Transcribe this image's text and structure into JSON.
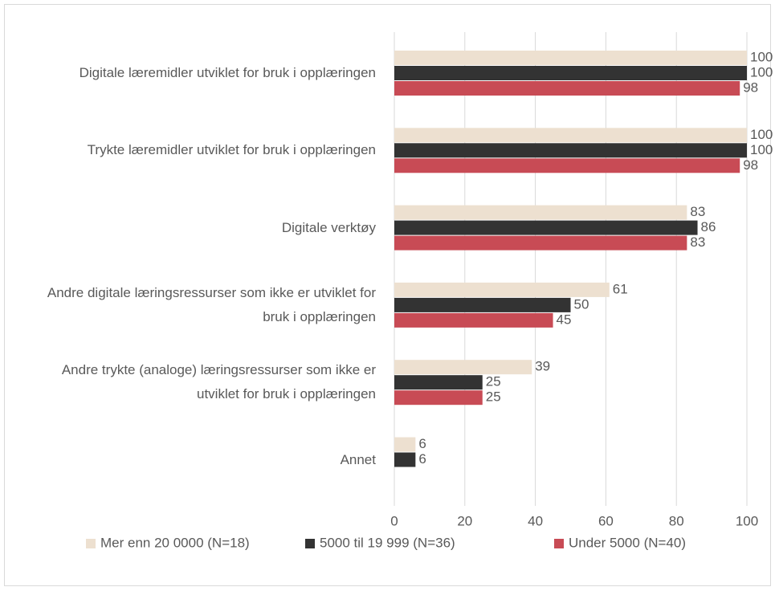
{
  "chart_data": {
    "type": "bar",
    "orientation": "horizontal",
    "categories": [
      "Digitale læremidler utviklet for bruk i opplæringen",
      "Trykte læremidler utviklet for bruk i opplæringen",
      "Digitale verktøy",
      "Andre digitale læringsressurser som ikke er utviklet for bruk i opplæringen",
      "Andre trykte (analoge) læringsressurser som ikke er utviklet for bruk i opplæringen",
      "Annet"
    ],
    "series": [
      {
        "name": "Mer enn 20 0000 (N=18)",
        "color": "#ede0d0",
        "values": [
          100,
          100,
          83,
          61,
          39,
          6
        ]
      },
      {
        "name": "5000 til 19 999 (N=36)",
        "color": "#333333",
        "values": [
          100,
          100,
          86,
          50,
          25,
          6
        ]
      },
      {
        "name": "Under 5000 (N=40)",
        "color": "#c84b55",
        "values": [
          98,
          98,
          83,
          45,
          25,
          null
        ]
      }
    ],
    "xlim": [
      0,
      100
    ],
    "xticks": [
      0,
      20,
      40,
      60,
      80,
      100
    ],
    "grid": true,
    "legend": "bottom"
  }
}
